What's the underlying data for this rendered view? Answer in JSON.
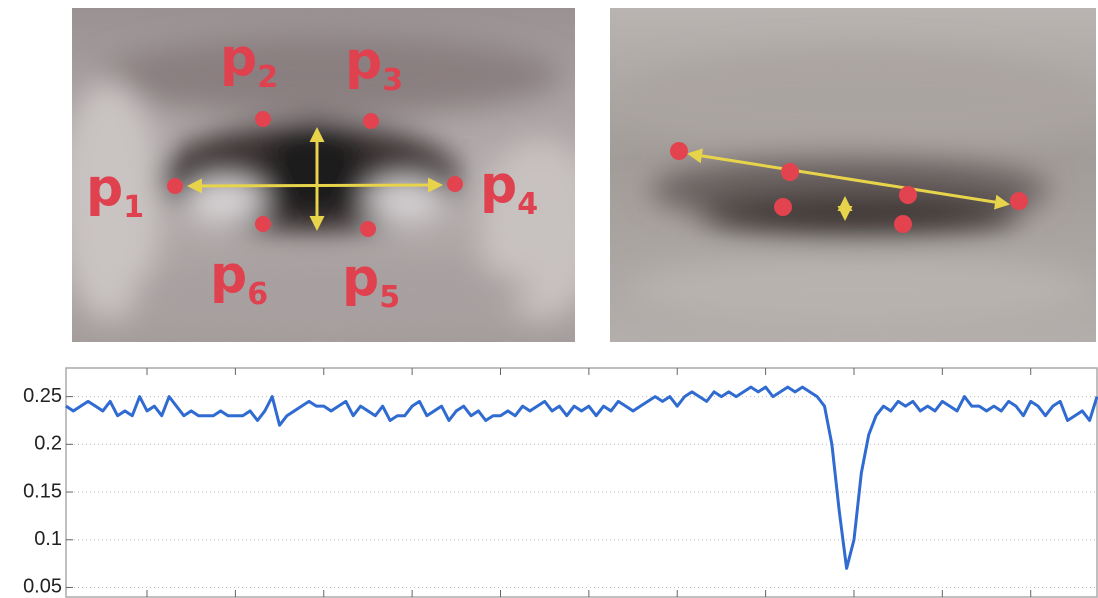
{
  "left_eye": {
    "landmarks": [
      {
        "letter": "p",
        "sub": "1"
      },
      {
        "letter": "p",
        "sub": "2"
      },
      {
        "letter": "p",
        "sub": "3"
      },
      {
        "letter": "p",
        "sub": "4"
      },
      {
        "letter": "p",
        "sub": "5"
      },
      {
        "letter": "p",
        "sub": "6"
      }
    ]
  },
  "chart_data": {
    "type": "line",
    "color": "#2f6bd0",
    "grid": true,
    "ylim": [
      0.04,
      0.28
    ],
    "yticks": [
      0.05,
      0.1,
      0.15,
      0.2,
      0.25
    ],
    "xlim": [
      0,
      140
    ],
    "xticks": [
      11,
      23,
      35,
      47,
      59,
      71,
      83,
      95,
      107,
      119,
      131
    ],
    "values": [
      0.24,
      0.235,
      0.24,
      0.245,
      0.24,
      0.235,
      0.245,
      0.23,
      0.235,
      0.23,
      0.25,
      0.235,
      0.24,
      0.23,
      0.25,
      0.24,
      0.23,
      0.235,
      0.23,
      0.23,
      0.23,
      0.235,
      0.23,
      0.23,
      0.23,
      0.235,
      0.225,
      0.235,
      0.25,
      0.22,
      0.23,
      0.235,
      0.24,
      0.245,
      0.24,
      0.24,
      0.235,
      0.24,
      0.245,
      0.23,
      0.24,
      0.235,
      0.23,
      0.24,
      0.225,
      0.23,
      0.23,
      0.24,
      0.245,
      0.23,
      0.235,
      0.24,
      0.225,
      0.235,
      0.24,
      0.23,
      0.235,
      0.225,
      0.23,
      0.23,
      0.235,
      0.23,
      0.24,
      0.235,
      0.24,
      0.245,
      0.235,
      0.24,
      0.23,
      0.24,
      0.235,
      0.24,
      0.23,
      0.24,
      0.235,
      0.245,
      0.24,
      0.235,
      0.24,
      0.245,
      0.25,
      0.245,
      0.25,
      0.24,
      0.25,
      0.255,
      0.25,
      0.245,
      0.255,
      0.25,
      0.255,
      0.25,
      0.255,
      0.26,
      0.255,
      0.26,
      0.25,
      0.255,
      0.26,
      0.255,
      0.26,
      0.255,
      0.25,
      0.24,
      0.2,
      0.13,
      0.07,
      0.1,
      0.17,
      0.21,
      0.23,
      0.24,
      0.235,
      0.245,
      0.24,
      0.245,
      0.235,
      0.24,
      0.235,
      0.245,
      0.24,
      0.235,
      0.25,
      0.24,
      0.24,
      0.235,
      0.24,
      0.235,
      0.245,
      0.24,
      0.23,
      0.245,
      0.24,
      0.23,
      0.24,
      0.245,
      0.225,
      0.23,
      0.235,
      0.225,
      0.25
    ]
  }
}
